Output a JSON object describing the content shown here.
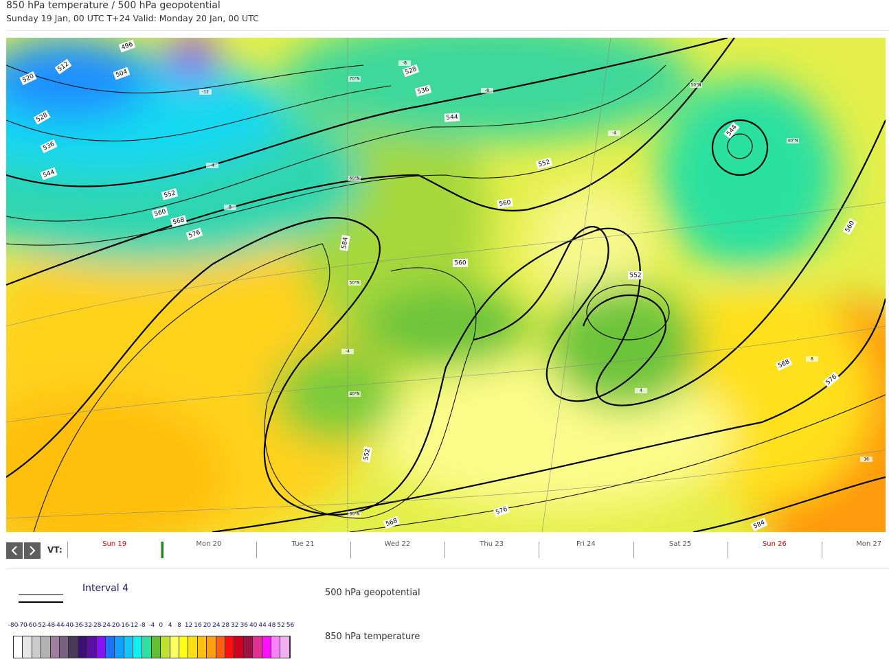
{
  "header": {
    "title": "850 hPa temperature / 500 hPa geopotential",
    "subtitle": "Sunday 19 Jan, 00 UTC T+24 Valid: Monday 20 Jan, 00 UTC"
  },
  "map": {
    "contour_labels": [
      "496",
      "504",
      "512",
      "520",
      "528",
      "536",
      "544",
      "552",
      "560",
      "568",
      "576",
      "584",
      "528",
      "536",
      "544",
      "552",
      "560",
      "560",
      "552",
      "544",
      "560",
      "568",
      "576",
      "552",
      "568",
      "576",
      "584"
    ],
    "temperature_labels": [
      "-12",
      "-8",
      "-4",
      "8",
      "-8",
      "-4",
      "-4",
      "4",
      "8",
      "16"
    ],
    "latitude_labels": [
      "70°N",
      "60°N",
      "50°N",
      "40°N",
      "30°N",
      "50°N",
      "40°N"
    ]
  },
  "timeline": {
    "label": "VT:",
    "days": [
      {
        "label": "Sun 19",
        "weekend": true
      },
      {
        "label": "Mon 20",
        "weekend": false
      },
      {
        "label": "Tue 21",
        "weekend": false
      },
      {
        "label": "Wed 22",
        "weekend": false
      },
      {
        "label": "Thu 23",
        "weekend": false
      },
      {
        "label": "Fri 24",
        "weekend": false
      },
      {
        "label": "Sat 25",
        "weekend": false
      },
      {
        "label": "Sun 26",
        "weekend": true
      },
      {
        "label": "Mon 27",
        "weekend": false
      }
    ]
  },
  "legend": {
    "geopotential": {
      "interval": "Interval 4",
      "name": "500 hPa geopotential"
    },
    "temperature": {
      "name": "850 hPa temperature",
      "scale_labels": [
        -80,
        -70,
        -60,
        -52,
        -48,
        -44,
        -40,
        -36,
        -32,
        -28,
        -24,
        -20,
        -16,
        -12,
        -8,
        -4,
        0,
        4,
        8,
        12,
        16,
        20,
        24,
        28,
        32,
        36,
        40,
        44,
        48,
        52,
        56
      ],
      "colors": [
        "#ffffff",
        "#e6e6e6",
        "#cccccc",
        "#b3b3b3",
        "#a07ea0",
        "#7a6080",
        "#4a3a5a",
        "#3a1070",
        "#5a10a0",
        "#8a10ff",
        "#1e70ff",
        "#10a0ff",
        "#10c8ff",
        "#10f0f0",
        "#30e0a0",
        "#60c030",
        "#c0e030",
        "#ffff60",
        "#ffff10",
        "#ffe010",
        "#ffc010",
        "#ffa010",
        "#ff6010",
        "#ff1010",
        "#d00020",
        "#a01040",
        "#e03090",
        "#ff10ff",
        "#ff80ff",
        "#f0b0f0"
      ]
    }
  }
}
